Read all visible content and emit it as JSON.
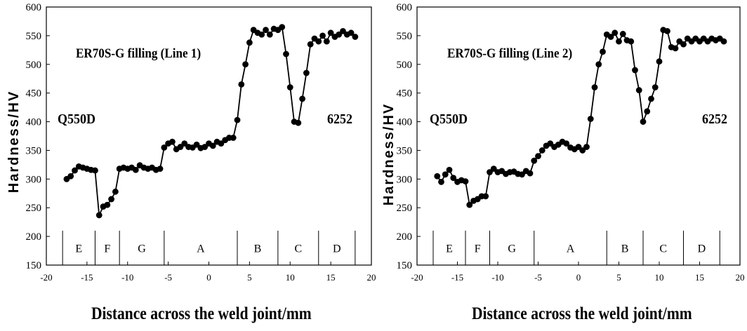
{
  "chart_data": [
    {
      "type": "line",
      "title": "ER70S-G filling (Line 1)",
      "xlabel": "Distance across the weld joint/mm",
      "ylabel": "Hardness/HV",
      "xlim": [
        -20,
        20
      ],
      "ylim": [
        150,
        600
      ],
      "xticks": [
        "-20",
        "-15",
        "-10",
        "-5",
        "0",
        "5",
        "10",
        "15",
        "20"
      ],
      "yticks": [
        "150",
        "200",
        "250",
        "300",
        "350",
        "400",
        "450",
        "500",
        "550",
        "600"
      ],
      "annotations": {
        "left": "Q550D",
        "right": "6252"
      },
      "zones": {
        "boundaries": [
          -18,
          -14,
          -11,
          -5.5,
          3.5,
          8.5,
          13.5,
          18
        ],
        "labels": [
          "E",
          "F",
          "G",
          "A",
          "B",
          "C",
          "D"
        ]
      },
      "series": [
        {
          "x": [
            -17.5,
            -17,
            -16.5,
            -16,
            -15.5,
            -15,
            -14.5,
            -14,
            -13.5,
            -13,
            -12.5,
            -12,
            -11.5,
            -11,
            -10.5,
            -10,
            -9.5,
            -9,
            -8.5,
            -8,
            -7.5,
            -7,
            -6.5,
            -6,
            -5.5,
            -5,
            -4.5,
            -4,
            -3.5,
            -3,
            -2.5,
            -2,
            -1.5,
            -1,
            -0.5,
            0,
            0.5,
            1,
            1.5,
            2,
            2.5,
            3,
            3.5,
            4,
            4.5,
            5,
            5.5,
            6,
            6.5,
            7,
            7.5,
            8,
            8.5,
            9,
            9.5,
            10,
            10.5,
            11,
            11.5,
            12,
            12.5,
            13,
            13.5,
            14,
            14.5,
            15,
            15.5,
            16,
            16.5,
            17,
            17.5,
            18
          ],
          "y": [
            300,
            305,
            315,
            322,
            320,
            318,
            316,
            315,
            237,
            252,
            255,
            265,
            278,
            318,
            320,
            318,
            320,
            316,
            324,
            320,
            318,
            320,
            316,
            318,
            355,
            362,
            365,
            352,
            356,
            362,
            356,
            355,
            360,
            354,
            356,
            362,
            358,
            365,
            362,
            368,
            372,
            372,
            403,
            465,
            500,
            538,
            560,
            555,
            552,
            560,
            552,
            562,
            560,
            565,
            518,
            460,
            400,
            398,
            440,
            485,
            535,
            545,
            540,
            550,
            540,
            555,
            548,
            552,
            558,
            552,
            555,
            548
          ]
        }
      ]
    },
    {
      "type": "line",
      "title": "ER70S-G filling (Line 2)",
      "xlabel": "Distance across the weld joint/mm",
      "ylabel": "Hardness/HV",
      "xlim": [
        -20,
        20
      ],
      "ylim": [
        150,
        600
      ],
      "xticks": [
        "-20",
        "-15",
        "-10",
        "-5",
        "0",
        "5",
        "10",
        "15",
        "20"
      ],
      "yticks": [
        "150",
        "200",
        "250",
        "300",
        "350",
        "400",
        "450",
        "500",
        "550",
        "600"
      ],
      "annotations": {
        "left": "Q550D",
        "right": "6252"
      },
      "zones": {
        "boundaries": [
          -18,
          -14,
          -11,
          -5.5,
          3.5,
          8,
          13,
          17.5
        ],
        "labels": [
          "E",
          "F",
          "G",
          "A",
          "B",
          "C",
          "D"
        ]
      },
      "series": [
        {
          "x": [
            -17.5,
            -17,
            -16.5,
            -16,
            -15.5,
            -15,
            -14.5,
            -14,
            -13.5,
            -13,
            -12.5,
            -12,
            -11.5,
            -11,
            -10.5,
            -10,
            -9.5,
            -9,
            -8.5,
            -8,
            -7.5,
            -7,
            -6.5,
            -6,
            -5.5,
            -5,
            -4.5,
            -4,
            -3.5,
            -3,
            -2.5,
            -2,
            -1.5,
            -1,
            -0.5,
            0,
            0.5,
            1,
            1.5,
            2,
            2.5,
            3,
            3.5,
            4,
            4.5,
            5,
            5.5,
            6,
            6.5,
            7,
            7.5,
            8,
            8.5,
            9,
            9.5,
            10,
            10.5,
            11,
            11.5,
            12,
            12.5,
            13,
            13.5,
            14,
            14.5,
            15,
            15.5,
            16,
            16.5,
            17,
            17.5,
            18
          ],
          "y": [
            305,
            295,
            308,
            316,
            302,
            295,
            298,
            296,
            255,
            262,
            265,
            270,
            270,
            312,
            318,
            312,
            314,
            309,
            312,
            313,
            309,
            308,
            314,
            310,
            332,
            340,
            350,
            358,
            362,
            356,
            360,
            365,
            362,
            355,
            352,
            356,
            350,
            356,
            405,
            460,
            500,
            522,
            552,
            548,
            555,
            540,
            553,
            542,
            540,
            490,
            455,
            400,
            418,
            440,
            460,
            505,
            560,
            558,
            530,
            528,
            540,
            535,
            545,
            540,
            545,
            540,
            545,
            540,
            545,
            542,
            545,
            540
          ]
        }
      ]
    }
  ]
}
